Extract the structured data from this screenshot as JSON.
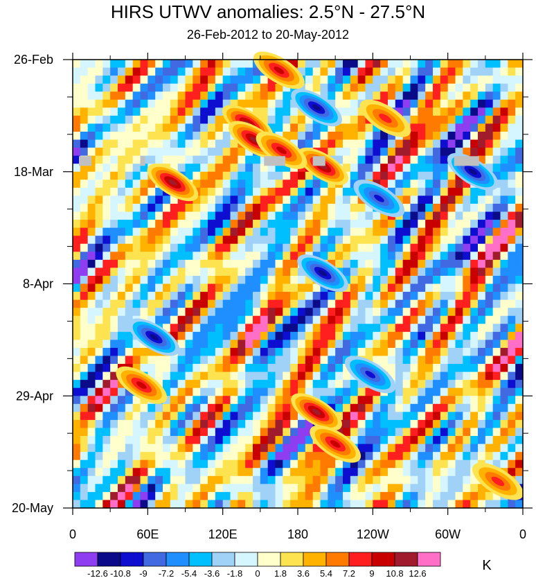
{
  "chart_data": {
    "type": "heatmap",
    "title": "HIRS UTWV anomalies: 2.5°N - 27.5°N",
    "subtitle": "26-Feb-2012 to 20-May-2012",
    "x_ticks": [
      "0",
      "60E",
      "120E",
      "180",
      "120W",
      "60W",
      "0"
    ],
    "y_ticks": [
      "26-Feb",
      "18-Mar",
      "8-Apr",
      "29-Apr",
      "20-May"
    ],
    "x_range_deg_east": [
      0,
      360
    ],
    "y_range": [
      "26-Feb-2012",
      "20-May-2012"
    ],
    "colorbar": {
      "levels": [
        "-12.6",
        "-10.8",
        "-9",
        "-7.2",
        "-5.4",
        "-3.6",
        "-1.8",
        "0",
        "1.8",
        "3.6",
        "5.4",
        "7.2",
        "9",
        "10.8",
        "12.6"
      ],
      "colors": [
        "#8f3df0",
        "#0b0b8a",
        "#0e0ed0",
        "#4169e1",
        "#1f8fff",
        "#00bfff",
        "#a0d2f8",
        "#d6f6ff",
        "#ffffcc",
        "#fde34f",
        "#ffb300",
        "#ff7a00",
        "#ff1f1f",
        "#c80000",
        "#a01c2c",
        "#ff6ec7"
      ],
      "units": "K"
    },
    "missing_color": "#c0c0c0",
    "features": [
      {
        "lon": 140,
        "day": 12,
        "value": 12.6
      },
      {
        "lon": 145,
        "day": 15,
        "value": 10.8
      },
      {
        "lon": 200,
        "day": 20,
        "value": 12.6
      },
      {
        "lon": 80,
        "day": 23,
        "value": 10.8
      },
      {
        "lon": 165,
        "day": 2,
        "value": 9
      },
      {
        "lon": 167,
        "day": 17,
        "value": 9
      },
      {
        "lon": 195,
        "day": 9,
        "value": -12.6
      },
      {
        "lon": 65,
        "day": 52,
        "value": -12.6
      },
      {
        "lon": 320,
        "day": 21,
        "value": -10.8
      },
      {
        "lon": 200,
        "day": 40,
        "value": -10.8
      },
      {
        "lon": 238,
        "day": 59,
        "value": -9
      },
      {
        "lon": 195,
        "day": 66,
        "value": 10.8
      },
      {
        "lon": 210,
        "day": 72,
        "value": 9
      },
      {
        "lon": 55,
        "day": 61,
        "value": 9
      },
      {
        "lon": 245,
        "day": 26,
        "value": -9
      },
      {
        "lon": 250,
        "day": 11,
        "value": 7.2
      },
      {
        "lon": 340,
        "day": 79,
        "value": 7.2
      }
    ],
    "missing_blocks": [
      {
        "lon_start": 5,
        "lon_end": 15,
        "day": 19
      },
      {
        "lon_start": 54,
        "lon_end": 58,
        "day": 19
      },
      {
        "lon_start": 153,
        "lon_end": 170,
        "day": 19
      },
      {
        "lon_start": 192,
        "lon_end": 202,
        "day": 19
      },
      {
        "lon_start": 305,
        "lon_end": 325,
        "day": 19
      }
    ]
  }
}
